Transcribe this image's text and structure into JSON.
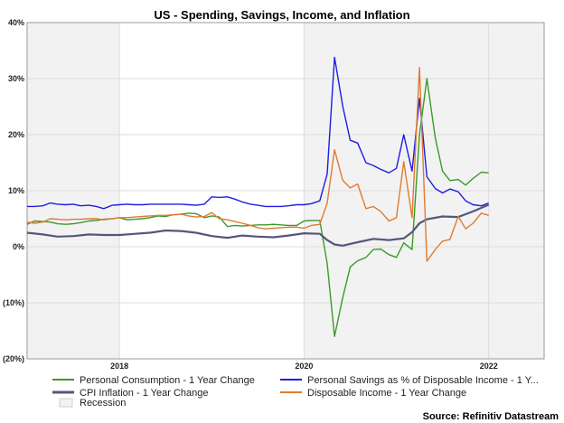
{
  "chart_data": {
    "type": "line",
    "title": "US - Spending, Savings, Income, and Inflation",
    "source": "Source: Refinitiv Datastream",
    "y_ticks": [
      "40%",
      "30%",
      "20%",
      "10%",
      "0%",
      "(10%)",
      "(20%)"
    ],
    "y_tick_values": [
      40,
      30,
      20,
      10,
      0,
      -10,
      -20
    ],
    "x_ticks": [
      "2018",
      "2020",
      "2022"
    ],
    "x_tick_values": [
      2018,
      2020,
      2022
    ],
    "xlim": [
      2017.0,
      2022.6
    ],
    "ylim": [
      -20,
      40
    ],
    "grid": true,
    "legend_placement": "bottom",
    "recessions": [
      [
        2017.0,
        2018.0
      ],
      [
        2020.0,
        2022.6
      ]
    ],
    "recession_label": "Recession",
    "recession_color": "#f2f2f2",
    "series": [
      {
        "name": "Personal Consumption - 1 Year Change",
        "color": "#3c9a2b",
        "points": [
          [
            2017.0,
            4.0
          ],
          [
            2017.08,
            4.6
          ],
          [
            2017.17,
            4.5
          ],
          [
            2017.25,
            4.4
          ],
          [
            2017.33,
            4.1
          ],
          [
            2017.42,
            4.0
          ],
          [
            2017.5,
            4.1
          ],
          [
            2017.58,
            4.3
          ],
          [
            2017.67,
            4.6
          ],
          [
            2017.75,
            4.7
          ],
          [
            2017.83,
            4.9
          ],
          [
            2017.92,
            5.0
          ],
          [
            2018.0,
            5.2
          ],
          [
            2018.08,
            4.8
          ],
          [
            2018.17,
            4.9
          ],
          [
            2018.25,
            5.0
          ],
          [
            2018.33,
            5.2
          ],
          [
            2018.42,
            5.5
          ],
          [
            2018.5,
            5.4
          ],
          [
            2018.58,
            5.7
          ],
          [
            2018.67,
            5.8
          ],
          [
            2018.75,
            6.0
          ],
          [
            2018.83,
            5.9
          ],
          [
            2018.92,
            5.2
          ],
          [
            2019.0,
            5.5
          ],
          [
            2019.08,
            5.3
          ],
          [
            2019.17,
            3.6
          ],
          [
            2019.25,
            3.8
          ],
          [
            2019.33,
            3.7
          ],
          [
            2019.42,
            3.8
          ],
          [
            2019.5,
            3.9
          ],
          [
            2019.58,
            3.9
          ],
          [
            2019.67,
            4.0
          ],
          [
            2019.75,
            3.9
          ],
          [
            2019.83,
            3.8
          ],
          [
            2019.92,
            3.8
          ],
          [
            2020.0,
            4.6
          ],
          [
            2020.08,
            4.7
          ],
          [
            2020.17,
            4.7
          ],
          [
            2020.25,
            -3.0
          ],
          [
            2020.33,
            -16.0
          ],
          [
            2020.42,
            -9.0
          ],
          [
            2020.5,
            -3.6
          ],
          [
            2020.58,
            -2.5
          ],
          [
            2020.67,
            -1.9
          ],
          [
            2020.75,
            -0.5
          ],
          [
            2020.83,
            -0.4
          ],
          [
            2020.92,
            -1.4
          ],
          [
            2021.0,
            -1.9
          ],
          [
            2021.08,
            0.7
          ],
          [
            2021.17,
            -0.5
          ],
          [
            2021.25,
            20.0
          ],
          [
            2021.33,
            30.0
          ],
          [
            2021.42,
            19.5
          ],
          [
            2021.5,
            13.5
          ],
          [
            2021.58,
            11.8
          ],
          [
            2021.67,
            12.0
          ],
          [
            2021.75,
            11.0
          ],
          [
            2021.83,
            12.2
          ],
          [
            2021.92,
            13.3
          ],
          [
            2022.0,
            13.2
          ]
        ]
      },
      {
        "name": "Personal Savings as % of Disposable Income - 1 Y...",
        "color": "#1e1ee0",
        "points": [
          [
            2017.0,
            7.2
          ],
          [
            2017.08,
            7.2
          ],
          [
            2017.17,
            7.3
          ],
          [
            2017.25,
            7.8
          ],
          [
            2017.33,
            7.6
          ],
          [
            2017.42,
            7.5
          ],
          [
            2017.5,
            7.6
          ],
          [
            2017.58,
            7.3
          ],
          [
            2017.67,
            7.4
          ],
          [
            2017.75,
            7.2
          ],
          [
            2017.83,
            6.8
          ],
          [
            2017.92,
            7.4
          ],
          [
            2018.0,
            7.5
          ],
          [
            2018.08,
            7.6
          ],
          [
            2018.17,
            7.5
          ],
          [
            2018.25,
            7.5
          ],
          [
            2018.33,
            7.6
          ],
          [
            2018.42,
            7.6
          ],
          [
            2018.5,
            7.6
          ],
          [
            2018.58,
            7.6
          ],
          [
            2018.67,
            7.6
          ],
          [
            2018.75,
            7.5
          ],
          [
            2018.83,
            7.4
          ],
          [
            2018.92,
            7.6
          ],
          [
            2019.0,
            8.9
          ],
          [
            2019.08,
            8.8
          ],
          [
            2019.17,
            8.9
          ],
          [
            2019.25,
            8.5
          ],
          [
            2019.33,
            8.0
          ],
          [
            2019.42,
            7.6
          ],
          [
            2019.5,
            7.4
          ],
          [
            2019.58,
            7.2
          ],
          [
            2019.67,
            7.2
          ],
          [
            2019.75,
            7.2
          ],
          [
            2019.83,
            7.3
          ],
          [
            2019.92,
            7.5
          ],
          [
            2020.0,
            7.5
          ],
          [
            2020.08,
            7.7
          ],
          [
            2020.17,
            8.2
          ],
          [
            2020.25,
            13.0
          ],
          [
            2020.33,
            33.8
          ],
          [
            2020.42,
            25.0
          ],
          [
            2020.5,
            19.0
          ],
          [
            2020.58,
            18.5
          ],
          [
            2020.67,
            15.0
          ],
          [
            2020.75,
            14.5
          ],
          [
            2020.83,
            13.8
          ],
          [
            2020.92,
            13.2
          ],
          [
            2021.0,
            14.0
          ],
          [
            2021.08,
            20.0
          ],
          [
            2021.17,
            13.5
          ],
          [
            2021.25,
            26.5
          ],
          [
            2021.33,
            12.5
          ],
          [
            2021.42,
            10.4
          ],
          [
            2021.5,
            9.6
          ],
          [
            2021.58,
            10.3
          ],
          [
            2021.67,
            9.8
          ],
          [
            2021.75,
            8.2
          ],
          [
            2021.83,
            7.5
          ],
          [
            2021.92,
            7.3
          ],
          [
            2022.0,
            7.8
          ]
        ]
      },
      {
        "name": "CPI Inflation - 1 Year Change",
        "color": "#56567a",
        "points": [
          [
            2017.0,
            2.5
          ],
          [
            2017.17,
            2.2
          ],
          [
            2017.33,
            1.8
          ],
          [
            2017.5,
            1.9
          ],
          [
            2017.67,
            2.2
          ],
          [
            2017.83,
            2.1
          ],
          [
            2018.0,
            2.1
          ],
          [
            2018.17,
            2.3
          ],
          [
            2018.33,
            2.5
          ],
          [
            2018.5,
            2.9
          ],
          [
            2018.67,
            2.8
          ],
          [
            2018.83,
            2.5
          ],
          [
            2019.0,
            1.9
          ],
          [
            2019.17,
            1.6
          ],
          [
            2019.33,
            2.0
          ],
          [
            2019.5,
            1.8
          ],
          [
            2019.67,
            1.7
          ],
          [
            2019.83,
            2.0
          ],
          [
            2020.0,
            2.4
          ],
          [
            2020.17,
            2.3
          ],
          [
            2020.25,
            1.2
          ],
          [
            2020.33,
            0.4
          ],
          [
            2020.42,
            0.2
          ],
          [
            2020.58,
            0.8
          ],
          [
            2020.75,
            1.4
          ],
          [
            2020.92,
            1.2
          ],
          [
            2021.08,
            1.5
          ],
          [
            2021.17,
            2.6
          ],
          [
            2021.25,
            4.2
          ],
          [
            2021.33,
            4.9
          ],
          [
            2021.5,
            5.4
          ],
          [
            2021.67,
            5.3
          ],
          [
            2021.83,
            6.3
          ],
          [
            2022.0,
            7.5
          ]
        ]
      },
      {
        "name": "Disposable Income - 1 Year Change",
        "color": "#e07b30",
        "points": [
          [
            2017.0,
            4.4
          ],
          [
            2017.08,
            4.2
          ],
          [
            2017.17,
            4.4
          ],
          [
            2017.25,
            5.0
          ],
          [
            2017.33,
            4.9
          ],
          [
            2017.42,
            4.8
          ],
          [
            2017.5,
            4.9
          ],
          [
            2017.58,
            4.9
          ],
          [
            2017.67,
            5.0
          ],
          [
            2017.75,
            5.0
          ],
          [
            2017.83,
            4.8
          ],
          [
            2017.92,
            5.0
          ],
          [
            2018.0,
            5.2
          ],
          [
            2018.08,
            5.2
          ],
          [
            2018.17,
            5.3
          ],
          [
            2018.25,
            5.4
          ],
          [
            2018.33,
            5.5
          ],
          [
            2018.42,
            5.6
          ],
          [
            2018.5,
            5.6
          ],
          [
            2018.58,
            5.7
          ],
          [
            2018.67,
            5.8
          ],
          [
            2018.75,
            5.5
          ],
          [
            2018.83,
            5.3
          ],
          [
            2018.92,
            5.4
          ],
          [
            2019.0,
            6.1
          ],
          [
            2019.08,
            5.0
          ],
          [
            2019.17,
            4.8
          ],
          [
            2019.25,
            4.5
          ],
          [
            2019.33,
            4.2
          ],
          [
            2019.42,
            3.8
          ],
          [
            2019.5,
            3.4
          ],
          [
            2019.58,
            3.2
          ],
          [
            2019.67,
            3.3
          ],
          [
            2019.75,
            3.4
          ],
          [
            2019.83,
            3.5
          ],
          [
            2019.92,
            3.5
          ],
          [
            2020.0,
            3.3
          ],
          [
            2020.08,
            3.8
          ],
          [
            2020.17,
            4.0
          ],
          [
            2020.25,
            7.8
          ],
          [
            2020.33,
            17.3
          ],
          [
            2020.42,
            11.8
          ],
          [
            2020.5,
            10.5
          ],
          [
            2020.58,
            11.2
          ],
          [
            2020.67,
            6.8
          ],
          [
            2020.75,
            7.2
          ],
          [
            2020.83,
            6.3
          ],
          [
            2020.92,
            4.6
          ],
          [
            2021.0,
            5.2
          ],
          [
            2021.08,
            15.2
          ],
          [
            2021.17,
            5.2
          ],
          [
            2021.25,
            32.0
          ],
          [
            2021.33,
            -2.6
          ],
          [
            2021.42,
            -0.5
          ],
          [
            2021.5,
            1.0
          ],
          [
            2021.58,
            1.3
          ],
          [
            2021.67,
            5.4
          ],
          [
            2021.75,
            3.2
          ],
          [
            2021.83,
            4.2
          ],
          [
            2021.92,
            6.0
          ],
          [
            2022.0,
            5.6
          ]
        ]
      }
    ]
  }
}
